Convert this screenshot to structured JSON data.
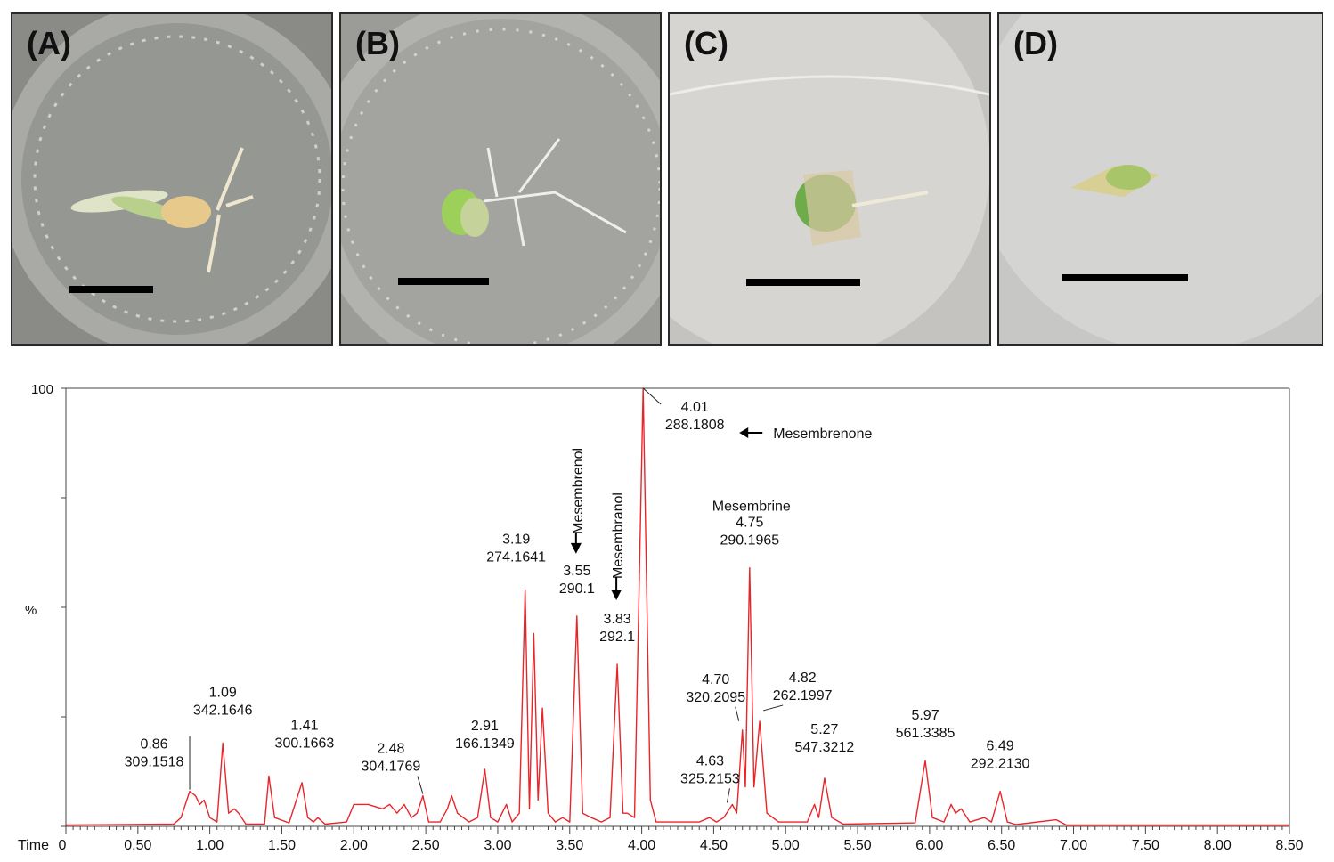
{
  "panels": [
    {
      "label": "(A)"
    },
    {
      "label": "(B)"
    },
    {
      "label": "(C)"
    },
    {
      "label": "(D)"
    }
  ],
  "chart_data": {
    "type": "line",
    "ylabel": "%",
    "xlabel_prefix": "Time",
    "y_tick_labels": [
      "100"
    ],
    "ylim": [
      0,
      100
    ],
    "xlim": [
      0,
      8.5
    ],
    "x_tick_labels": [
      "0",
      "0.50",
      "1.00",
      "1.50",
      "2.00",
      "2.50",
      "3.00",
      "3.50",
      "4.00",
      "4.50",
      "5.00",
      "5.50",
      "6.00",
      "6.50",
      "7.00",
      "7.50",
      "8.00",
      "8.50"
    ],
    "line_color": "#e8262a",
    "series": [
      {
        "values": [
          {
            "x": 0.0,
            "y": 0.3
          },
          {
            "x": 0.75,
            "y": 0.5
          },
          {
            "x": 0.8,
            "y": 2
          },
          {
            "x": 0.86,
            "y": 8
          },
          {
            "x": 0.9,
            "y": 7
          },
          {
            "x": 0.93,
            "y": 5
          },
          {
            "x": 0.96,
            "y": 6
          },
          {
            "x": 1.0,
            "y": 2
          },
          {
            "x": 1.05,
            "y": 1
          },
          {
            "x": 1.09,
            "y": 19
          },
          {
            "x": 1.13,
            "y": 3
          },
          {
            "x": 1.17,
            "y": 4
          },
          {
            "x": 1.2,
            "y": 3
          },
          {
            "x": 1.25,
            "y": 0.5
          },
          {
            "x": 1.38,
            "y": 0.5
          },
          {
            "x": 1.41,
            "y": 11.5
          },
          {
            "x": 1.45,
            "y": 2
          },
          {
            "x": 1.55,
            "y": 0.8
          },
          {
            "x": 1.64,
            "y": 10
          },
          {
            "x": 1.68,
            "y": 2
          },
          {
            "x": 1.72,
            "y": 1
          },
          {
            "x": 1.75,
            "y": 2
          },
          {
            "x": 1.8,
            "y": 0.5
          },
          {
            "x": 1.95,
            "y": 1
          },
          {
            "x": 2.0,
            "y": 5
          },
          {
            "x": 2.1,
            "y": 5
          },
          {
            "x": 2.2,
            "y": 4
          },
          {
            "x": 2.25,
            "y": 5
          },
          {
            "x": 2.3,
            "y": 3
          },
          {
            "x": 2.35,
            "y": 5
          },
          {
            "x": 2.4,
            "y": 2
          },
          {
            "x": 2.44,
            "y": 3
          },
          {
            "x": 2.48,
            "y": 7
          },
          {
            "x": 2.52,
            "y": 1
          },
          {
            "x": 2.6,
            "y": 1
          },
          {
            "x": 2.65,
            "y": 4
          },
          {
            "x": 2.68,
            "y": 7
          },
          {
            "x": 2.72,
            "y": 3
          },
          {
            "x": 2.8,
            "y": 1
          },
          {
            "x": 2.86,
            "y": 2
          },
          {
            "x": 2.91,
            "y": 13
          },
          {
            "x": 2.95,
            "y": 2
          },
          {
            "x": 3.0,
            "y": 1
          },
          {
            "x": 3.06,
            "y": 5
          },
          {
            "x": 3.1,
            "y": 1
          },
          {
            "x": 3.15,
            "y": 3
          },
          {
            "x": 3.19,
            "y": 54
          },
          {
            "x": 3.22,
            "y": 4
          },
          {
            "x": 3.25,
            "y": 44
          },
          {
            "x": 3.28,
            "y": 6
          },
          {
            "x": 3.31,
            "y": 27
          },
          {
            "x": 3.35,
            "y": 3
          },
          {
            "x": 3.4,
            "y": 1
          },
          {
            "x": 3.45,
            "y": 2
          },
          {
            "x": 3.5,
            "y": 1
          },
          {
            "x": 3.55,
            "y": 48
          },
          {
            "x": 3.59,
            "y": 3
          },
          {
            "x": 3.65,
            "y": 2
          },
          {
            "x": 3.72,
            "y": 1
          },
          {
            "x": 3.78,
            "y": 2
          },
          {
            "x": 3.83,
            "y": 37
          },
          {
            "x": 3.87,
            "y": 3
          },
          {
            "x": 3.9,
            "y": 3
          },
          {
            "x": 3.95,
            "y": 2
          },
          {
            "x": 4.01,
            "y": 100
          },
          {
            "x": 4.06,
            "y": 6
          },
          {
            "x": 4.1,
            "y": 1
          },
          {
            "x": 4.4,
            "y": 1
          },
          {
            "x": 4.47,
            "y": 2
          },
          {
            "x": 4.52,
            "y": 1
          },
          {
            "x": 4.57,
            "y": 2
          },
          {
            "x": 4.63,
            "y": 5
          },
          {
            "x": 4.66,
            "y": 3
          },
          {
            "x": 4.7,
            "y": 22
          },
          {
            "x": 4.72,
            "y": 9
          },
          {
            "x": 4.75,
            "y": 59
          },
          {
            "x": 4.78,
            "y": 9
          },
          {
            "x": 4.82,
            "y": 24
          },
          {
            "x": 4.87,
            "y": 3
          },
          {
            "x": 4.95,
            "y": 1
          },
          {
            "x": 5.15,
            "y": 1
          },
          {
            "x": 5.2,
            "y": 5
          },
          {
            "x": 5.23,
            "y": 2
          },
          {
            "x": 5.27,
            "y": 11
          },
          {
            "x": 5.32,
            "y": 2
          },
          {
            "x": 5.4,
            "y": 0.5
          },
          {
            "x": 5.9,
            "y": 0.8
          },
          {
            "x": 5.97,
            "y": 15
          },
          {
            "x": 6.02,
            "y": 2
          },
          {
            "x": 6.1,
            "y": 1
          },
          {
            "x": 6.15,
            "y": 5
          },
          {
            "x": 6.18,
            "y": 3
          },
          {
            "x": 6.22,
            "y": 4
          },
          {
            "x": 6.28,
            "y": 1
          },
          {
            "x": 6.38,
            "y": 2
          },
          {
            "x": 6.43,
            "y": 1
          },
          {
            "x": 6.49,
            "y": 8
          },
          {
            "x": 6.54,
            "y": 1
          },
          {
            "x": 6.6,
            "y": 0.4
          },
          {
            "x": 6.88,
            "y": 1.5
          },
          {
            "x": 6.95,
            "y": 0.3
          },
          {
            "x": 8.5,
            "y": 0.3
          }
        ]
      }
    ],
    "annotations": [
      {
        "time": "0.86",
        "mz": "309.1518",
        "peak_x": 0.86
      },
      {
        "time": "1.09",
        "mz": "342.1646",
        "peak_x": 1.09
      },
      {
        "time": "1.41",
        "mz": "300.1663",
        "peak_x": 1.41
      },
      {
        "time": "2.48",
        "mz": "304.1769",
        "peak_x": 2.48
      },
      {
        "time": "2.91",
        "mz": "166.1349",
        "peak_x": 2.91
      },
      {
        "time": "3.19",
        "mz": "274.1641",
        "peak_x": 3.19
      },
      {
        "time": "3.55",
        "mz": "290.1",
        "peak_x": 3.55
      },
      {
        "time": "3.83",
        "mz": "292.1",
        "peak_x": 3.83
      },
      {
        "time": "4.01",
        "mz": "288.1808",
        "peak_x": 4.01
      },
      {
        "time": "4.63",
        "mz": "325.2153",
        "peak_x": 4.63
      },
      {
        "time": "4.70",
        "mz": "320.2095",
        "peak_x": 4.7
      },
      {
        "time": "4.75",
        "mz": "290.1965",
        "peak_x": 4.75
      },
      {
        "time": "4.82",
        "mz": "262.1997",
        "peak_x": 4.82
      },
      {
        "time": "5.27",
        "mz": "547.3212",
        "peak_x": 5.27
      },
      {
        "time": "5.97",
        "mz": "561.3385",
        "peak_x": 5.97
      },
      {
        "time": "6.49",
        "mz": "292.2130",
        "peak_x": 6.49
      }
    ],
    "compound_labels": [
      {
        "name": "Mesembrenone",
        "peak_x": 4.01
      },
      {
        "name": "Mesembrenol",
        "peak_x": 3.55
      },
      {
        "name": "Mesembranol",
        "peak_x": 3.83
      },
      {
        "name": "Mesembrine",
        "peak_x": 4.75
      }
    ]
  }
}
